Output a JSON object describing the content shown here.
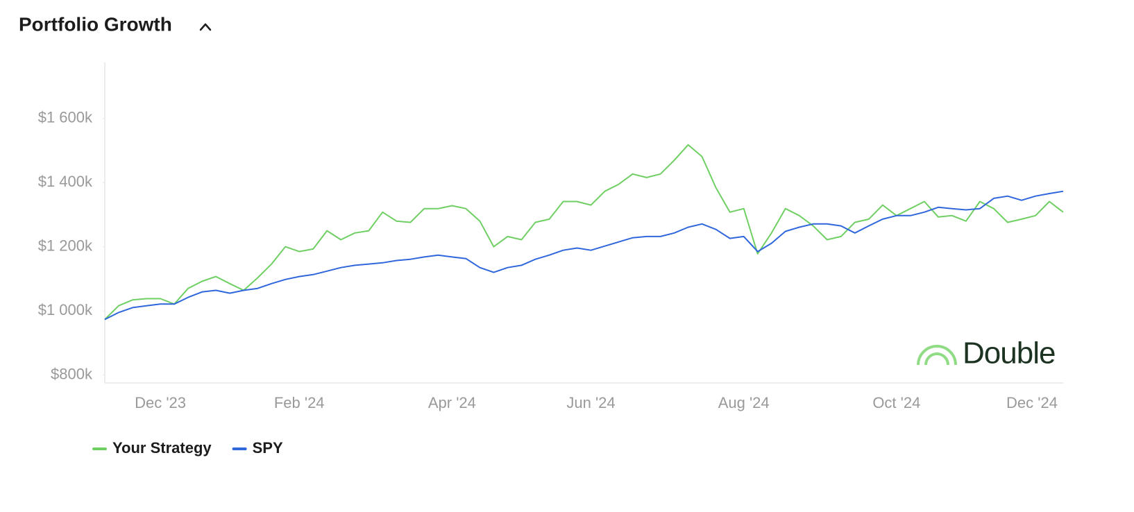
{
  "chart_data": {
    "type": "line",
    "title": "Portfolio Growth",
    "watermark": "Double",
    "categories": [
      null,
      null,
      null,
      null,
      "Dec '23",
      null,
      null,
      null,
      null,
      null,
      null,
      null,
      null,
      null,
      "Feb '24",
      null,
      null,
      null,
      null,
      null,
      null,
      null,
      null,
      null,
      null,
      "Apr '24",
      null,
      null,
      null,
      null,
      null,
      null,
      null,
      null,
      null,
      "Jun '24",
      null,
      null,
      null,
      null,
      null,
      null,
      null,
      null,
      null,
      null,
      "Aug '24",
      null,
      null,
      null,
      null,
      null,
      null,
      null,
      null,
      null,
      null,
      "Oct '24",
      null,
      null,
      null,
      null,
      null,
      null,
      null,
      null,
      null,
      "Dec '24",
      null,
      null
    ],
    "series": [
      {
        "name": "Your Strategy",
        "color": "#6fcf63",
        "values": [
          973000,
          1016000,
          1034000,
          1038000,
          1038000,
          1021000,
          1070000,
          1092000,
          1107000,
          1085000,
          1064000,
          1103000,
          1146000,
          1200000,
          1185000,
          1193000,
          1250000,
          1222000,
          1243000,
          1250000,
          1308000,
          1280000,
          1276000,
          1319000,
          1319000,
          1328000,
          1319000,
          1280000,
          1200000,
          1232000,
          1222000,
          1276000,
          1286000,
          1341000,
          1341000,
          1330000,
          1373000,
          1395000,
          1427000,
          1416000,
          1427000,
          1470000,
          1518000,
          1481000,
          1384000,
          1308000,
          1319000,
          1178000,
          1243000,
          1319000,
          1297000,
          1265000,
          1222000,
          1232000,
          1276000,
          1286000,
          1330000,
          1297000,
          1319000,
          1341000,
          1293000,
          1297000,
          1280000,
          1341000,
          1319000,
          1276000,
          1286000,
          1297000,
          1341000,
          1308000
        ]
      },
      {
        "name": "SPY",
        "color": "#2f66dc",
        "values": [
          973000,
          995000,
          1010000,
          1016000,
          1021000,
          1021000,
          1042000,
          1059000,
          1064000,
          1055000,
          1064000,
          1070000,
          1085000,
          1098000,
          1107000,
          1113000,
          1124000,
          1135000,
          1142000,
          1146000,
          1150000,
          1157000,
          1161000,
          1168000,
          1174000,
          1168000,
          1163000,
          1135000,
          1120000,
          1135000,
          1142000,
          1161000,
          1174000,
          1189000,
          1196000,
          1189000,
          1202000,
          1215000,
          1228000,
          1232000,
          1232000,
          1243000,
          1261000,
          1271000,
          1254000,
          1226000,
          1232000,
          1185000,
          1211000,
          1248000,
          1261000,
          1271000,
          1271000,
          1265000,
          1243000,
          1265000,
          1286000,
          1297000,
          1297000,
          1308000,
          1323000,
          1319000,
          1315000,
          1319000,
          1351000,
          1358000,
          1345000,
          1358000,
          1366000,
          1373000
        ]
      }
    ],
    "ylim": [
      775000,
      1775000
    ],
    "yticks": [
      {
        "value": 800000,
        "label": "$800k"
      },
      {
        "value": 1000000,
        "label": "$1 000k"
      },
      {
        "value": 1200000,
        "label": "$1 200k"
      },
      {
        "value": 1400000,
        "label": "$1 400k"
      },
      {
        "value": 1600000,
        "label": "$1 600k"
      }
    ],
    "grid": false
  }
}
